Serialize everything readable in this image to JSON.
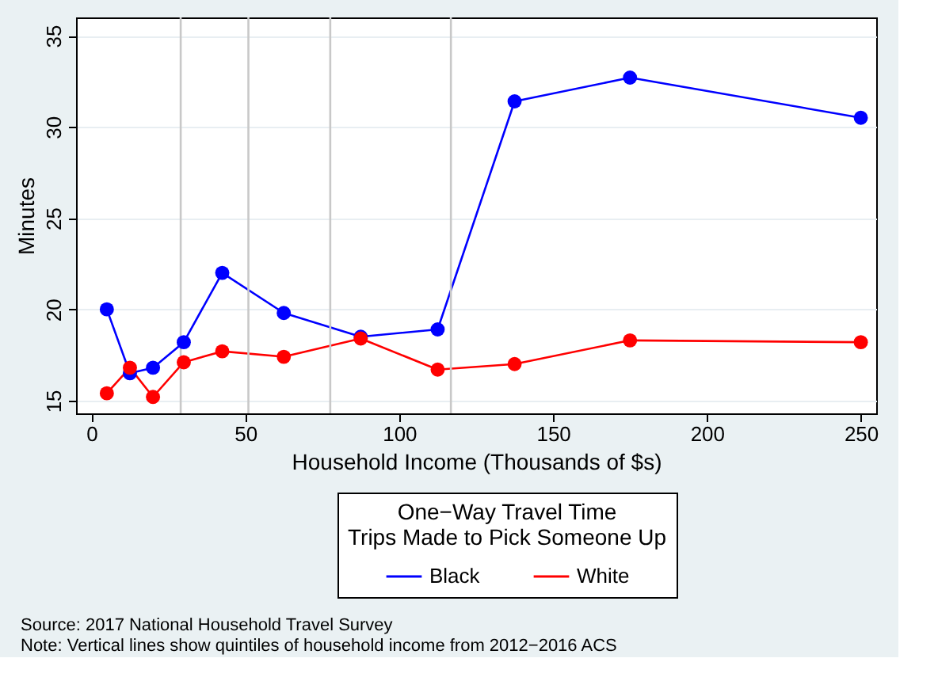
{
  "chart_data": {
    "type": "line",
    "xlabel": "Household Income (Thousands of $s)",
    "ylabel": "Minutes",
    "legend_title": "One−Way Travel Time\nTrips Made to Pick Someone Up",
    "x": [
      5,
      12.5,
      20,
      30,
      42.5,
      62.5,
      87.5,
      112.5,
      137.5,
      175,
      250
    ],
    "series": [
      {
        "name": "Black",
        "color": "#0000ff",
        "values": [
          20,
          16.5,
          16.8,
          18.2,
          22,
          19.8,
          18.5,
          18.9,
          31.4,
          32.7,
          30.5
        ]
      },
      {
        "name": "White",
        "color": "#ff0000",
        "values": [
          15.4,
          16.8,
          15.2,
          17.1,
          17.7,
          17.4,
          18.4,
          16.7,
          17,
          18.3,
          18.2
        ]
      }
    ],
    "xlim": [
      -5,
      255
    ],
    "ylim": [
      14.3,
      36
    ],
    "xticks": [
      0,
      50,
      100,
      150,
      200,
      250
    ],
    "yticks": [
      15,
      20,
      25,
      30,
      35
    ],
    "ref_lines": [
      {
        "axis": "x",
        "value": 29,
        "color": "#c8c8c8"
      },
      {
        "axis": "x",
        "value": 51,
        "color": "#c8c8c8"
      },
      {
        "axis": "x",
        "value": 77.6,
        "color": "#c8c8c8"
      },
      {
        "axis": "x",
        "value": 116.8,
        "color": "#c8c8c8"
      }
    ],
    "annotations": [
      "Source:  2017 National Household Travel Survey",
      "Note:  Vertical lines show quintiles of household income from 2012−2016 ACS"
    ],
    "grid": "y",
    "legend": "bottom",
    "marker": "circle",
    "line_style": "solid"
  }
}
